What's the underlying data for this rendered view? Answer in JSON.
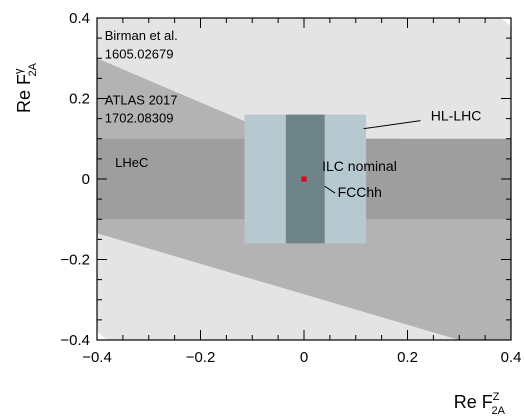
{
  "chart_data": {
    "type": "area",
    "xlabel": {
      "base": "Re F",
      "sup": "Z",
      "sub": "2A"
    },
    "ylabel": {
      "base": "Re F",
      "sup": "γ",
      "sub": "2A"
    },
    "xlim": [
      -0.4,
      0.4
    ],
    "ylim": [
      -0.4,
      0.4
    ],
    "x_ticks": [
      "−0.4",
      "−0.2",
      "0",
      "0.2",
      "0.4"
    ],
    "y_ticks": [
      "−0.4",
      "−0.2",
      "0",
      "0.2",
      "0.4"
    ],
    "x_tick_values": [
      -0.4,
      -0.2,
      0,
      0.2,
      0.4
    ],
    "y_tick_values": [
      -0.4,
      -0.2,
      0,
      0.2,
      0.4
    ],
    "regions": [
      {
        "name": "Birman et al.",
        "reference": "1605.02679",
        "shape": "polygon",
        "points": [
          [
            -0.4,
            -0.38
          ],
          [
            -0.38,
            -0.4
          ],
          [
            0.4,
            -0.4
          ],
          [
            0.4,
            0.38
          ],
          [
            0.38,
            0.4
          ],
          [
            -0.4,
            0.4
          ]
        ],
        "color": "#e4e4e4"
      },
      {
        "name": "ATLAS 2017",
        "reference": "1702.08309",
        "shape": "polygon",
        "points": [
          [
            -0.4,
            0.3
          ],
          [
            -0.4,
            -0.135
          ],
          [
            0.3,
            -0.4
          ],
          [
            0.4,
            -0.4
          ],
          [
            0.4,
            -0.1
          ],
          [
            0.19,
            -0.1
          ],
          [
            0.19,
            0.1
          ],
          [
            -0.035,
            0.1
          ]
        ],
        "color": "#b3b3b3"
      },
      {
        "name": "LHeC",
        "shape": "rect",
        "x_range": [
          -0.4,
          0.4
        ],
        "y_range": [
          -0.1,
          0.1
        ],
        "color": "#9e9e9e"
      },
      {
        "name": "HL-LHC",
        "shape": "rect",
        "x_range": [
          -0.115,
          0.12
        ],
        "y_range": [
          -0.16,
          0.16
        ],
        "color": "#b7c9d0"
      },
      {
        "name": "FCChh",
        "shape": "rect",
        "x_range": [
          -0.035,
          0.04
        ],
        "y_range": [
          -0.16,
          0.16
        ],
        "color": "#6e8489"
      }
    ],
    "points": [
      {
        "name": "ILC nominal",
        "x": 0.0,
        "y": 0.0,
        "color": "#e8001c"
      }
    ],
    "annotations": [
      {
        "text": "Birman et al.",
        "x": -0.385,
        "y": 0.345
      },
      {
        "text": "1605.02679",
        "x": -0.385,
        "y": 0.3
      },
      {
        "text": "ATLAS 2017",
        "x": -0.385,
        "y": 0.185
      },
      {
        "text": "1702.08309",
        "x": -0.385,
        "y": 0.14
      },
      {
        "text": "LHeC",
        "x": -0.365,
        "y": 0.03
      },
      {
        "text": "HL-LHC",
        "x": 0.245,
        "y": 0.145
      },
      {
        "text": "ILC nominal",
        "x": 0.035,
        "y": 0.02
      },
      {
        "text": "FCChh",
        "x": 0.065,
        "y": -0.045
      }
    ],
    "leader_lines": [
      {
        "from": [
          0.115,
          0.125
        ],
        "to": [
          0.225,
          0.145
        ]
      },
      {
        "from": [
          0.04,
          -0.018
        ],
        "to": [
          0.06,
          -0.035
        ]
      }
    ]
  }
}
